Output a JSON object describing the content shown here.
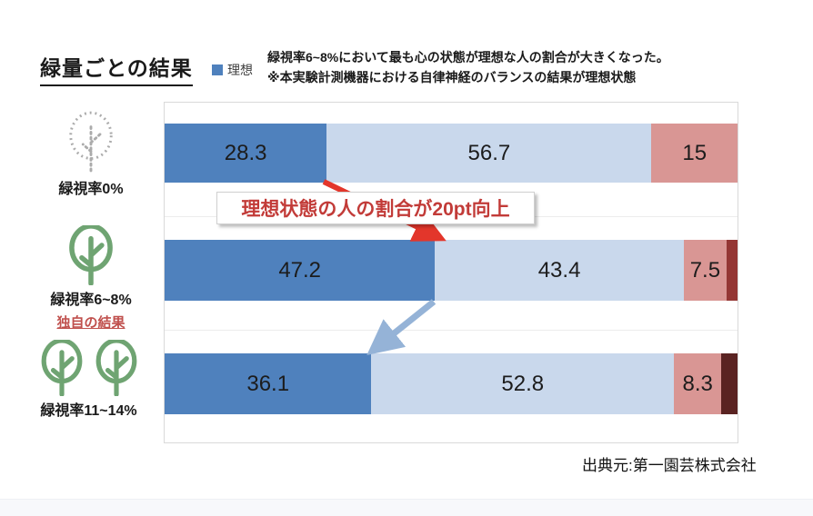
{
  "title": "緑量ごとの結果",
  "legend": {
    "label": "理想",
    "color": "#4F81BD"
  },
  "note": {
    "line1": "緑視率6~8%において最も心の状態が理想な人の割合が大きくなった。",
    "line2": "※本実験計測機器における自律神経のバランスの結果が理想状態"
  },
  "callout": {
    "text": "理想状態の人の割合が20pt向上",
    "text_color": "#C23B38",
    "arrow_color": "#E3362B"
  },
  "down_arrow_color": "#95B3D7",
  "source": "出典元:第一園芸株式会社",
  "chart_data": {
    "type": "bar",
    "orientation": "horizontal",
    "stacked": true,
    "xlim": [
      0,
      100
    ],
    "grid": "faint category separators",
    "legend_position": "top",
    "legend_entries": [
      {
        "label": "理想",
        "color": "#4F81BD"
      }
    ],
    "categories": [
      "緑視率0%",
      "緑視率6~8%",
      "緑視率11~14%"
    ],
    "rows": [
      {
        "category": "緑視率0%",
        "sublabel": "",
        "icon": "tree-dotted-icon",
        "segments": [
          {
            "value": 28.3,
            "label": "28.3",
            "color": "#4F81BD"
          },
          {
            "value": 56.7,
            "label": "56.7",
            "color": "#C9D8EC"
          },
          {
            "value": 15.0,
            "label": "15",
            "color": "#D99694"
          }
        ]
      },
      {
        "category": "緑視率6~8%",
        "sublabel": "独自の結果",
        "icon": "tree-green-icon",
        "segments": [
          {
            "value": 47.2,
            "label": "47.2",
            "color": "#4F81BD"
          },
          {
            "value": 43.4,
            "label": "43.4",
            "color": "#C9D8EC"
          },
          {
            "value": 7.5,
            "label": "7.5",
            "color": "#D99694"
          },
          {
            "value": 1.9,
            "label": "",
            "color": "#943634"
          }
        ]
      },
      {
        "category": "緑視率11~14%",
        "sublabel": "",
        "icon": "tree-green-double-icon",
        "segments": [
          {
            "value": 36.1,
            "label": "36.1",
            "color": "#4F81BD"
          },
          {
            "value": 52.8,
            "label": "52.8",
            "color": "#C9D8EC"
          },
          {
            "value": 8.3,
            "label": "8.3",
            "color": "#D99694"
          },
          {
            "value": 2.8,
            "label": "",
            "color": "#5A2322"
          }
        ]
      }
    ]
  }
}
